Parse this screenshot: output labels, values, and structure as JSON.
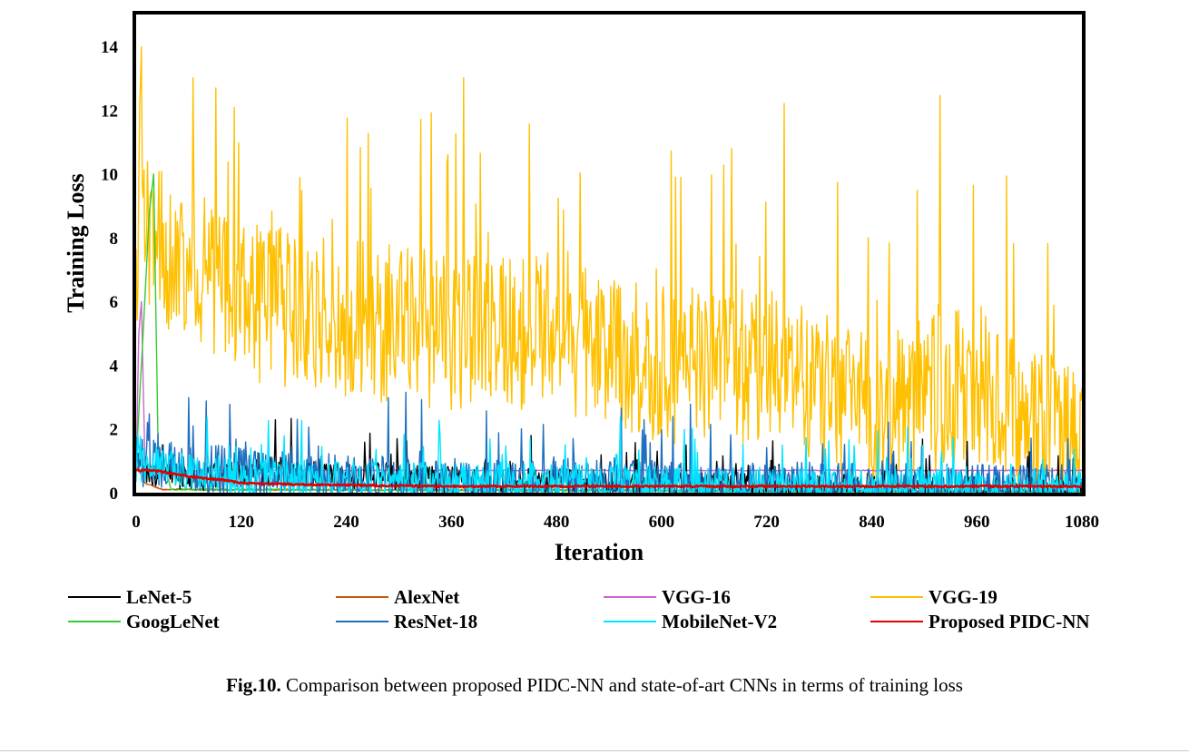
{
  "chart_data": {
    "type": "line",
    "xlabel": "Iteration",
    "ylabel": "Training Loss",
    "xlim": [
      0,
      1080
    ],
    "ylim": [
      0,
      15
    ],
    "x_ticks": [
      "0",
      "120",
      "240",
      "360",
      "480",
      "600",
      "720",
      "840",
      "960",
      "1080"
    ],
    "y_ticks": [
      "0",
      "2",
      "4",
      "6",
      "8",
      "10",
      "12",
      "14"
    ],
    "grid": false,
    "legend_position": "bottom",
    "series": [
      {
        "name": "LeNet-5",
        "color": "#000000",
        "x": [
          0,
          5,
          20,
          50,
          80,
          120,
          170,
          220,
          260,
          300,
          340,
          360,
          420,
          480,
          540,
          600,
          660,
          720,
          780,
          840,
          900,
          960,
          1020,
          1080
        ],
        "values": [
          1.0,
          0.8,
          0.6,
          0.5,
          0.5,
          0.6,
          0.7,
          0.6,
          0.5,
          0.5,
          0.4,
          0.4,
          0.35,
          0.3,
          0.3,
          0.25,
          0.2,
          0.2,
          0.15,
          0.15,
          0.1,
          0.1,
          0.1,
          0.1
        ],
        "noise": 0.9
      },
      {
        "name": "AlexNet",
        "color": "#c55a11",
        "x": [
          0,
          10,
          30,
          1080
        ],
        "values": [
          0.9,
          0.3,
          0.1,
          0.05
        ],
        "noise": 0.05
      },
      {
        "name": "VGG-16",
        "color": "#cc66cc",
        "x": [
          0,
          3,
          6,
          10,
          20,
          1080
        ],
        "values": [
          0.6,
          5.0,
          6.0,
          1.0,
          0.7,
          0.7
        ],
        "noise": 0.03
      },
      {
        "name": "VGG-19",
        "color": "#ffc000",
        "x": [
          0,
          5,
          10,
          80,
          120,
          240,
          360,
          480,
          600,
          720,
          840,
          900,
          960,
          1020,
          1080
        ],
        "values": [
          6.0,
          12.0,
          8.0,
          7.0,
          6.0,
          5.5,
          5.0,
          5.0,
          4.0,
          4.0,
          2.5,
          3.0,
          3.5,
          2.0,
          1.8
        ],
        "noise": 5.0
      },
      {
        "name": "GoogLeNet",
        "color": "#33cc33",
        "x": [
          0,
          8,
          15,
          20,
          25,
          40,
          1080
        ],
        "values": [
          1.0,
          5.0,
          8.8,
          10.0,
          1.5,
          0.1,
          0.02
        ],
        "noise": 0.05
      },
      {
        "name": "ResNet-18",
        "color": "#1f6fbf",
        "x": [
          0,
          40,
          120,
          240,
          360,
          480,
          600,
          720,
          840,
          960,
          1080
        ],
        "values": [
          1.0,
          0.9,
          0.6,
          0.4,
          0.3,
          0.3,
          0.2,
          0.2,
          0.15,
          0.1,
          0.1
        ],
        "noise": 1.6
      },
      {
        "name": "MobileNet-V2",
        "color": "#00e5ff",
        "x": [
          0,
          40,
          120,
          240,
          360,
          480,
          600,
          720,
          840,
          960,
          1080
        ],
        "values": [
          0.9,
          0.8,
          0.5,
          0.4,
          0.35,
          0.3,
          0.25,
          0.2,
          0.2,
          0.15,
          0.15
        ],
        "noise": 1.2
      },
      {
        "name": "Proposed PIDC-NN",
        "color": "#e00000",
        "x": [
          0,
          20,
          40,
          60,
          80,
          100,
          120,
          200,
          360,
          600,
          840,
          1080
        ],
        "values": [
          0.7,
          0.7,
          0.6,
          0.5,
          0.45,
          0.4,
          0.3,
          0.25,
          0.2,
          0.2,
          0.2,
          0.2
        ],
        "noise": 0.05
      }
    ]
  },
  "caption": {
    "label": "Fig.10.",
    "text": " Comparison between proposed PIDC-NN and state-of-art CNNs in terms of training loss"
  }
}
